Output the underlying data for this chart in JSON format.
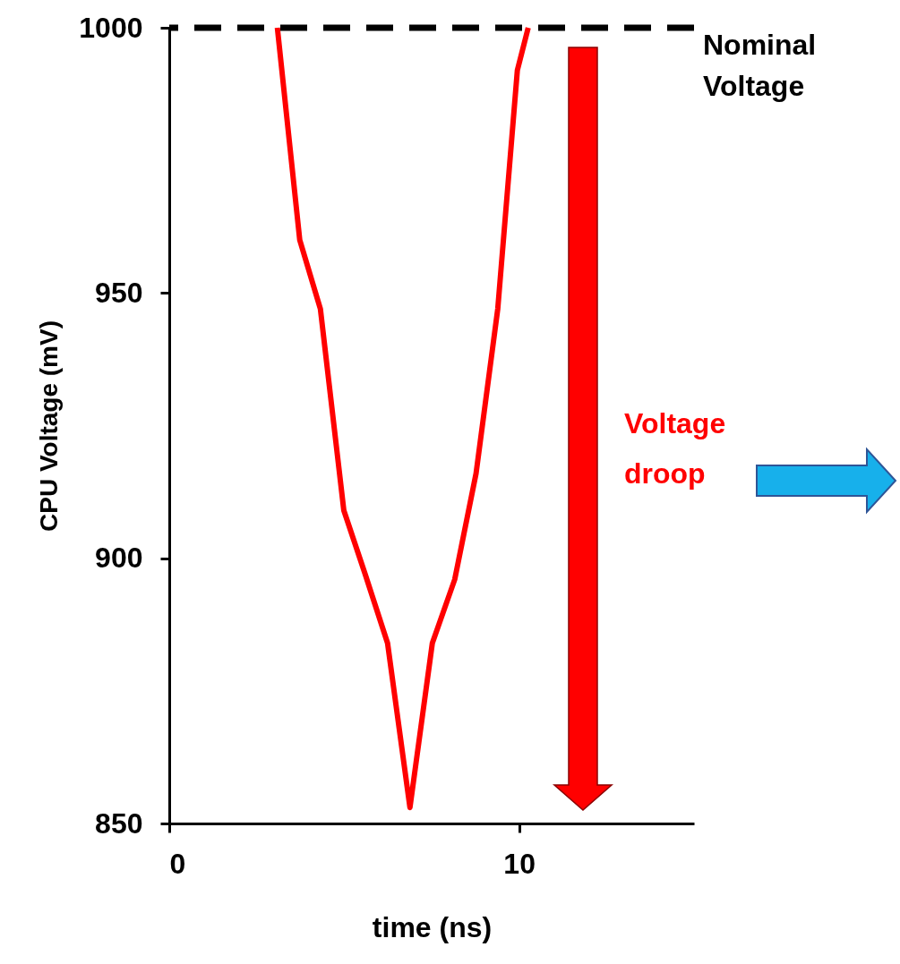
{
  "chart_data": {
    "type": "line",
    "xlabel": "time (ns)",
    "ylabel": "CPU Voltage  (mV)",
    "x": [
      3.09,
      3.73,
      4.32,
      4.99,
      5.6,
      6.24,
      6.88,
      7.52,
      8.16,
      8.77,
      9.39,
      9.95,
      10.26
    ],
    "series": [
      {
        "color": "#ff0000",
        "values": [
          1000,
          960,
          947,
          909,
          897,
          884,
          853,
          884,
          896,
          916,
          947,
          992,
          1000
        ]
      }
    ],
    "xlim": [
      0,
      15
    ],
    "xticks": [
      0,
      10
    ],
    "ylim": [
      850,
      1000
    ],
    "yticks": [
      850,
      900,
      950,
      1000
    ],
    "ref_lines": [
      {
        "axis": "y",
        "value": 1000,
        "label": "Nominal Voltage",
        "color": "#000000",
        "line_style": "dashed"
      }
    ],
    "annotations": [
      "Voltage droop"
    ]
  }
}
